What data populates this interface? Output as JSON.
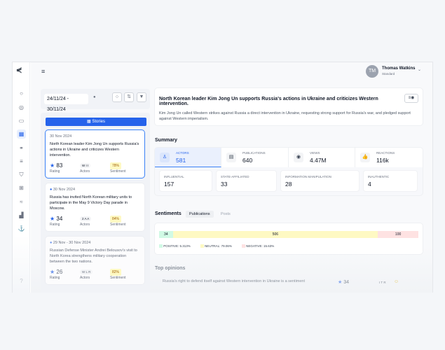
{
  "user": {
    "initials": "TM",
    "name": "Thomas Watkins",
    "role": "Standard"
  },
  "filters": {
    "date_range": "24/11/24 - 30/11/24"
  },
  "stories_button": "Stories",
  "stories": [
    {
      "date": "30 Nov 2024",
      "title": "North Korean leader Kim Jong Un supports Russia's actions in Ukraine and criticizes Western intervention.",
      "rating": "83",
      "actors": "W I I",
      "sentiment": "78%",
      "selected": true
    },
    {
      "date": "30 Nov 2024",
      "title": "Russia has invited North Korean military units to participate in the May 9 Victory Day parade in Moscow.",
      "rating": "34",
      "actors": "2 A A",
      "sentiment": "84%"
    },
    {
      "date": "29 Nov - 30 Nov 2024",
      "title": "Russian Defense Minister Andrei Belousov's visit to North Korea strengthens military cooperation between the two nations.",
      "rating": "26",
      "actors": "W L R",
      "sentiment": "82%"
    }
  ],
  "labels": {
    "rating": "Rating",
    "actors": "Actors",
    "sentiment": "Sentiment"
  },
  "detail": {
    "title": "North Korean leader Kim Jong Un supports Russia's actions in Ukraine and criticizes Western intervention.",
    "description": "Kim Jong Un called Western strikes against Russia a direct intervention in Ukraine, requesting strong support for Russia's war, and pledged support against Western imperialism."
  },
  "summary": {
    "heading": "Summary",
    "tiles": [
      {
        "label": "Actors",
        "value": "581",
        "icon": "user-icon"
      },
      {
        "label": "Publications",
        "value": "640",
        "icon": "document-icon"
      },
      {
        "label": "Views",
        "value": "4.47M",
        "icon": "eye-icon"
      },
      {
        "label": "Reactions",
        "value": "116k",
        "icon": "thumbs-up-icon"
      }
    ],
    "sub": [
      {
        "label": "Influential",
        "value": "157"
      },
      {
        "label": "State-affiliated",
        "value": "33"
      },
      {
        "label": "Information manipulation",
        "value": "28"
      },
      {
        "label": "Inauthentic",
        "value": "4"
      }
    ]
  },
  "sentiments": {
    "heading": "Sentiments",
    "tabs": [
      "Publications",
      "Posts"
    ],
    "active_tab": "Publications",
    "bar": [
      {
        "value": "34",
        "color": "#d1fae5"
      },
      {
        "value": "506",
        "color": "#fef9c3"
      },
      {
        "value": "100",
        "color": "#fee2e2"
      }
    ],
    "legend": [
      "POSITIVE: 5.313%",
      "NEUTRAL: 79.06%",
      "NEGATIVE: 15.63%"
    ]
  },
  "top_opinions": {
    "heading": "Top opinions",
    "rows": [
      {
        "text": "Russia's right to defend itself against Western intervention in Ukraine is a sentiment",
        "rating": "34",
        "actors": "I T R"
      }
    ]
  }
}
